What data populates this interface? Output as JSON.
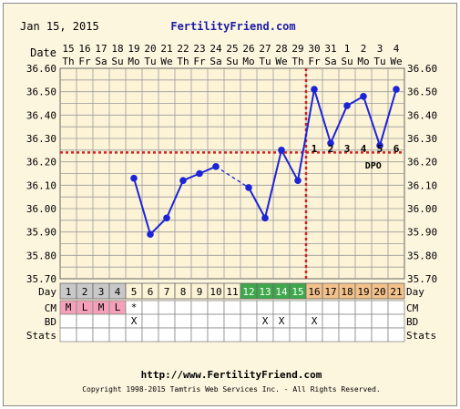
{
  "chart_date": "Jan 15, 2015",
  "brand": "FertilityFriend.com",
  "footer_url": "http://www.FertilityFriend.com",
  "copyright": "Copyright 1998-2015 Tamtris Web Services Inc. - All Rights Reserved.",
  "labels": {
    "date": "Date",
    "day": "Day",
    "cm": "CM",
    "bd": "BD",
    "stats": "Stats",
    "dpo": "DPO"
  },
  "colors": {
    "line": "#1c24d8",
    "coverline": "#d42020",
    "phase_menses": "#c8c8c8",
    "phase_fertile": "#3fa84c",
    "phase_luteal": "#f3c28c",
    "cm_menses": "#f3a0b8"
  },
  "chart_data": {
    "type": "line",
    "dates": [
      "15",
      "16",
      "17",
      "18",
      "19",
      "20",
      "21",
      "22",
      "23",
      "24",
      "25",
      "26",
      "27",
      "28",
      "29",
      "30",
      "31",
      "1",
      "2",
      "3",
      "4"
    ],
    "weekdays": [
      "Th",
      "Fr",
      "Sa",
      "Su",
      "Mo",
      "Tu",
      "We",
      "Th",
      "Fr",
      "Sa",
      "Su",
      "Mo",
      "Tu",
      "We",
      "Th",
      "Fr",
      "Sa",
      "Su",
      "Mo",
      "Tu",
      "We"
    ],
    "cycle_days": [
      "1",
      "2",
      "3",
      "4",
      "5",
      "6",
      "7",
      "8",
      "9",
      "10",
      "11",
      "12",
      "13",
      "14",
      "15",
      "16",
      "17",
      "18",
      "19",
      "20",
      "21"
    ],
    "y_ticks": [
      "36.60",
      "36.50",
      "36.40",
      "36.30",
      "36.20",
      "36.10",
      "36.00",
      "35.90",
      "35.80",
      "35.70"
    ],
    "ylim": [
      35.7,
      36.6
    ],
    "temperatures": [
      null,
      null,
      null,
      null,
      36.13,
      35.89,
      35.96,
      36.12,
      36.15,
      36.18,
      null,
      36.09,
      35.96,
      36.25,
      36.12,
      36.51,
      36.28,
      36.44,
      36.48,
      36.27,
      36.51
    ],
    "dashed_gaps": [
      [
        10,
        12
      ]
    ],
    "coverline": 36.24,
    "ovulation_day_index": 15,
    "dpo_labels": [
      "1",
      "2",
      "3",
      "4",
      "5",
      "6"
    ],
    "phases": [
      "menses",
      "menses",
      "menses",
      "menses",
      "none",
      "none",
      "none",
      "none",
      "none",
      "none",
      "none",
      "fertile",
      "fertile",
      "fertile",
      "fertile",
      "luteal",
      "luteal",
      "luteal",
      "luteal",
      "luteal",
      "luteal"
    ],
    "cm": [
      "M",
      "L",
      "M",
      "L",
      "*",
      "",
      "",
      "",
      "",
      "",
      "",
      "",
      "",
      "",
      "",
      "",
      "",
      "",
      "",
      "",
      ""
    ],
    "bd": [
      "",
      "",
      "",
      "",
      "X",
      "",
      "",
      "",
      "",
      "",
      "",
      "",
      "X",
      "X",
      "",
      "X",
      "",
      "",
      "",
      "",
      ""
    ],
    "stats": [
      "",
      "",
      "",
      "",
      "",
      "",
      "",
      "",
      "",
      "",
      "",
      "",
      "",
      "",
      "",
      "",
      "",
      "",
      "",
      "",
      ""
    ]
  }
}
